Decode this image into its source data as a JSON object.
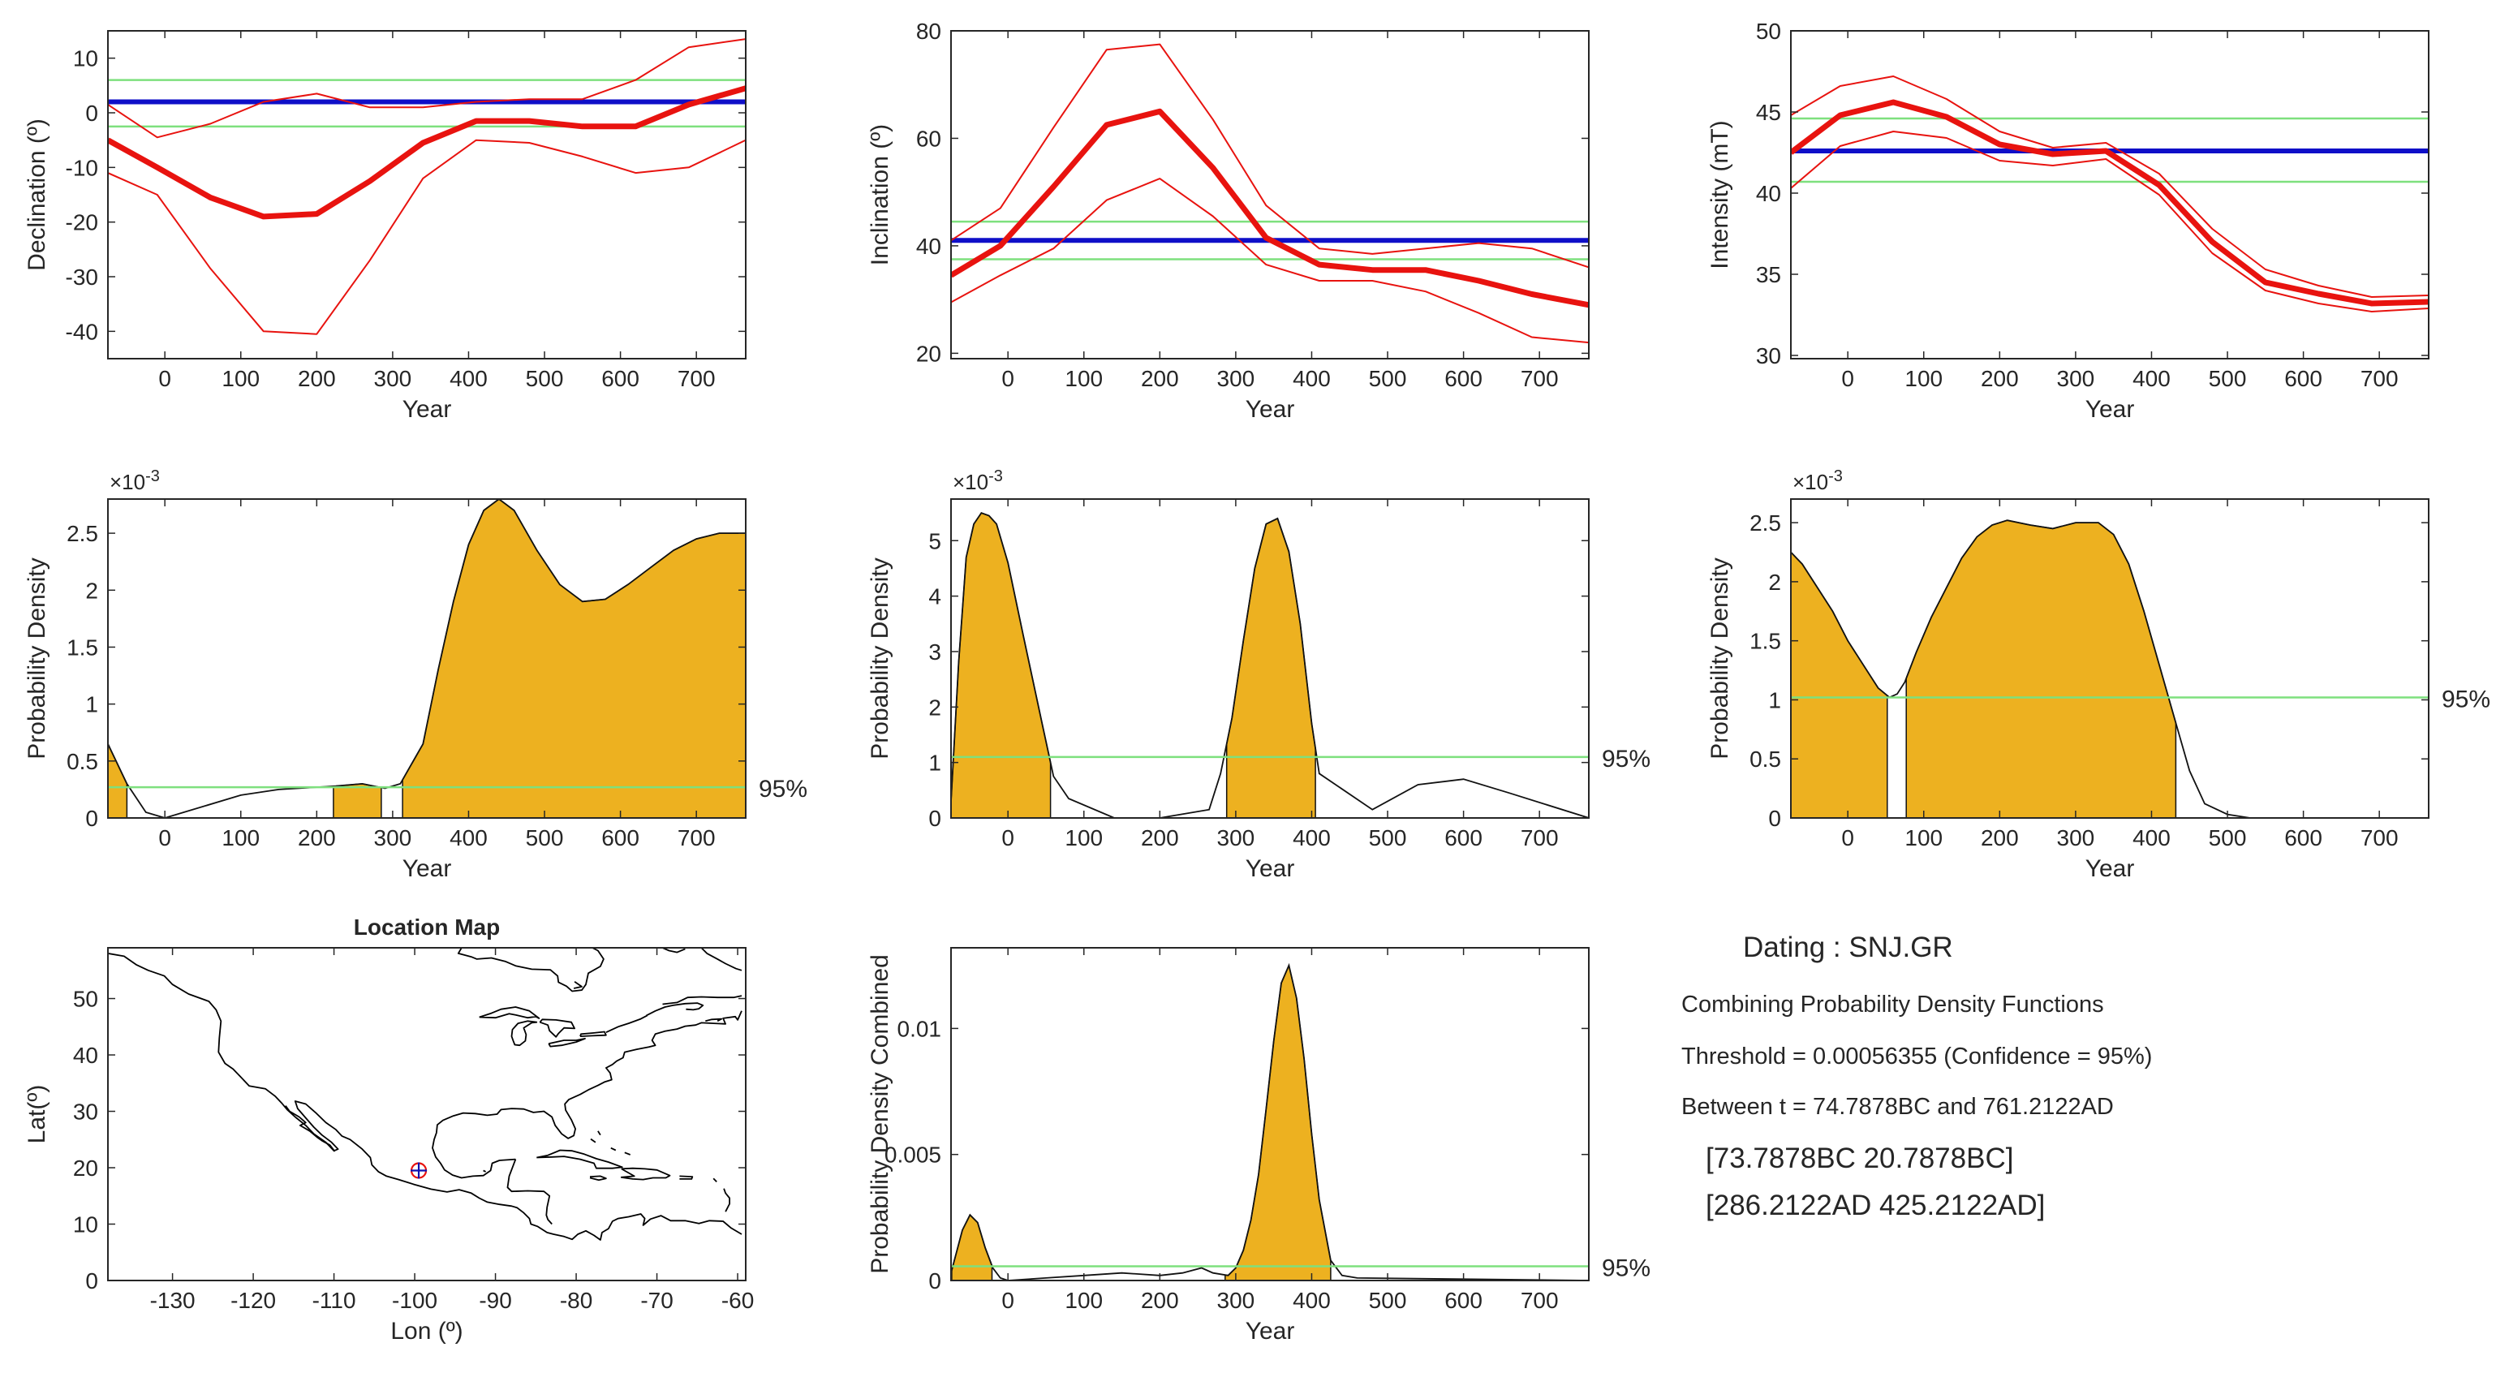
{
  "figure": {
    "dating_title": "Dating : SNJ.GR",
    "combining_text": "Combining Probability Density Functions",
    "threshold_text": "Threshold = 0.00056355 (Confidence = 95%)",
    "between_text": "Between t = 74.7878BC and 761.2122AD",
    "intervals": [
      "[73.7878BC   20.7878BC]",
      "[286.2122AD   425.2122AD]"
    ]
  },
  "colors": {
    "red": "#e8130f",
    "blue": "#0f0fc8",
    "green": "#7ee07e",
    "fill": "#edb120",
    "line": "#111111"
  },
  "chart_data": [
    {
      "id": "declination",
      "type": "line",
      "title": "",
      "xlabel": "Year",
      "ylabel": "Declination (º)",
      "xlim": [
        -75,
        765
      ],
      "ylim": [
        -45,
        15
      ],
      "xticks": [
        0,
        100,
        200,
        300,
        400,
        500,
        600,
        700
      ],
      "yticks": [
        -40,
        -30,
        -20,
        -10,
        0,
        10
      ],
      "x": [
        -75,
        -10,
        60,
        130,
        200,
        270,
        340,
        410,
        480,
        550,
        620,
        690,
        765
      ],
      "series": [
        {
          "name": "mean",
          "role": "mean",
          "values": [
            -5,
            -10,
            -15.5,
            -19,
            -18.5,
            -12.5,
            -5.5,
            -1.5,
            -1.5,
            -2.5,
            -2.5,
            1.5,
            4.5
          ]
        },
        {
          "name": "upper",
          "role": "bound",
          "values": [
            1.5,
            -4.5,
            -2,
            2,
            3.5,
            1,
            1,
            2,
            2.5,
            2.5,
            6,
            12,
            13.5
          ]
        },
        {
          "name": "lower",
          "role": "bound",
          "values": [
            -11,
            -15,
            -28.5,
            -40,
            -40.5,
            -27,
            -12,
            -5,
            -5.5,
            -8,
            -11,
            -10,
            -5
          ]
        }
      ],
      "reference": {
        "value": 2
      },
      "confidence_lines": [
        6,
        -2.5
      ]
    },
    {
      "id": "inclination",
      "type": "line",
      "title": "",
      "xlabel": "Year",
      "ylabel": "Inclination (º)",
      "xlim": [
        -75,
        765
      ],
      "ylim": [
        19,
        80
      ],
      "xticks": [
        0,
        100,
        200,
        300,
        400,
        500,
        600,
        700
      ],
      "yticks": [
        20,
        40,
        60,
        80
      ],
      "x": [
        -75,
        -10,
        60,
        130,
        200,
        270,
        340,
        410,
        480,
        550,
        620,
        690,
        765
      ],
      "series": [
        {
          "name": "mean",
          "role": "mean",
          "values": [
            34.5,
            40,
            51,
            62.5,
            65,
            54.5,
            41.5,
            36.5,
            35.5,
            35.5,
            33.5,
            31,
            29
          ]
        },
        {
          "name": "upper",
          "role": "bound",
          "values": [
            41,
            47,
            62,
            76.5,
            77.5,
            63.5,
            47.5,
            39.5,
            38.5,
            39.5,
            40.5,
            39.5,
            36
          ]
        },
        {
          "name": "lower",
          "role": "bound",
          "values": [
            29.5,
            34.5,
            39.5,
            48.5,
            52.5,
            45.5,
            36.5,
            33.5,
            33.5,
            31.5,
            27.5,
            23,
            22
          ]
        }
      ],
      "reference": {
        "value": 41
      },
      "confidence_lines": [
        44.5,
        37.5
      ]
    },
    {
      "id": "intensity",
      "type": "line",
      "title": "",
      "xlabel": "Year",
      "ylabel": "Intensity (mT)",
      "xlim": [
        -75,
        765
      ],
      "ylim": [
        29.8,
        50
      ],
      "xticks": [
        0,
        100,
        200,
        300,
        400,
        500,
        600,
        700
      ],
      "yticks": [
        30,
        35,
        40,
        45,
        50
      ],
      "x": [
        -75,
        -10,
        60,
        130,
        200,
        270,
        340,
        410,
        480,
        550,
        620,
        690,
        765
      ],
      "series": [
        {
          "name": "mean",
          "role": "mean",
          "values": [
            42.5,
            44.8,
            45.6,
            44.7,
            43,
            42.4,
            42.6,
            40.5,
            37,
            34.5,
            33.8,
            33.2,
            33.3
          ]
        },
        {
          "name": "upper",
          "role": "bound",
          "values": [
            44.8,
            46.6,
            47.2,
            45.8,
            43.8,
            42.8,
            43.1,
            41.2,
            37.8,
            35.3,
            34.3,
            33.6,
            33.7
          ]
        },
        {
          "name": "lower",
          "role": "bound",
          "values": [
            40.3,
            42.9,
            43.8,
            43.4,
            42,
            41.7,
            42.1,
            39.9,
            36.3,
            34,
            33.2,
            32.7,
            32.9
          ]
        }
      ],
      "reference": {
        "value": 42.6
      },
      "confidence_lines": [
        44.6,
        40.7
      ]
    },
    {
      "id": "declination-pdf",
      "type": "area",
      "title": "",
      "xlabel": "Year",
      "ylabel": "Probability Density",
      "exponent": "×10",
      "exponent_power": "-3",
      "xlim": [
        -75,
        765
      ],
      "ylim": [
        0,
        2.8
      ],
      "xticks": [
        0,
        100,
        200,
        300,
        400,
        500,
        600,
        700
      ],
      "yticks": [
        0,
        0.5,
        1,
        1.5,
        2,
        2.5
      ],
      "x": [
        -75,
        -50,
        -25,
        0,
        100,
        150,
        200,
        225,
        260,
        290,
        310,
        340,
        360,
        380,
        400,
        420,
        440,
        460,
        490,
        520,
        550,
        580,
        610,
        640,
        670,
        700,
        730,
        765
      ],
      "values": [
        0.65,
        0.3,
        0.05,
        0,
        0.2,
        0.25,
        0.27,
        0.28,
        0.3,
        0.26,
        0.3,
        0.65,
        1.3,
        1.9,
        2.4,
        2.7,
        2.8,
        2.7,
        2.35,
        2.05,
        1.9,
        1.92,
        2.05,
        2.2,
        2.35,
        2.45,
        2.5,
        2.5
      ],
      "threshold": 0.27,
      "threshold_label": "95%",
      "shaded_ranges": [
        [
          -75,
          -50
        ],
        [
          222,
          285
        ],
        [
          313,
          765
        ]
      ]
    },
    {
      "id": "inclination-pdf",
      "type": "area",
      "title": "",
      "xlabel": "Year",
      "ylabel": "Probability Density",
      "exponent": "×10",
      "exponent_power": "-3",
      "xlim": [
        -75,
        765
      ],
      "ylim": [
        0,
        5.75
      ],
      "xticks": [
        0,
        100,
        200,
        300,
        400,
        500,
        600,
        700
      ],
      "yticks": [
        0,
        1,
        2,
        3,
        4,
        5
      ],
      "x": [
        -75,
        -65,
        -55,
        -45,
        -35,
        -25,
        -15,
        0,
        20,
        45,
        60,
        80,
        140,
        200,
        265,
        280,
        295,
        310,
        325,
        340,
        355,
        370,
        385,
        400,
        410,
        480,
        540,
        600,
        660,
        765
      ],
      "values": [
        0.3,
        2.8,
        4.7,
        5.3,
        5.5,
        5.45,
        5.3,
        4.6,
        3.3,
        1.7,
        0.75,
        0.35,
        0,
        0,
        0.15,
        0.8,
        1.8,
        3.2,
        4.5,
        5.3,
        5.4,
        4.8,
        3.5,
        1.7,
        0.8,
        0.15,
        0.6,
        0.7,
        0.45,
        0
      ],
      "threshold": 1.1,
      "threshold_label": "95%",
      "shaded_ranges": [
        [
          -75,
          56
        ],
        [
          288,
          405
        ]
      ]
    },
    {
      "id": "intensity-pdf",
      "type": "area",
      "title": "",
      "xlabel": "Year",
      "ylabel": "Probability Density",
      "exponent": "×10",
      "exponent_power": "-3",
      "xlim": [
        -75,
        765
      ],
      "ylim": [
        0,
        2.7
      ],
      "xticks": [
        0,
        100,
        200,
        300,
        400,
        500,
        600,
        700
      ],
      "yticks": [
        0,
        0.5,
        1,
        1.5,
        2,
        2.5
      ],
      "x": [
        -75,
        -60,
        -40,
        -20,
        0,
        20,
        40,
        55,
        65,
        75,
        90,
        110,
        130,
        150,
        170,
        190,
        210,
        240,
        270,
        300,
        330,
        350,
        370,
        390,
        410,
        430,
        450,
        470,
        500,
        530,
        560,
        765
      ],
      "values": [
        2.25,
        2.15,
        1.95,
        1.75,
        1.5,
        1.3,
        1.1,
        1.02,
        1.05,
        1.15,
        1.4,
        1.7,
        1.95,
        2.2,
        2.38,
        2.48,
        2.52,
        2.48,
        2.45,
        2.5,
        2.5,
        2.4,
        2.15,
        1.75,
        1.3,
        0.85,
        0.4,
        0.12,
        0.03,
        0,
        0,
        0
      ],
      "threshold": 1.02,
      "threshold_label": "95%",
      "shaded_ranges": [
        [
          -75,
          52
        ],
        [
          77,
          432
        ]
      ]
    },
    {
      "id": "location-map",
      "type": "map",
      "title": "Location Map",
      "xlabel": "Lon (º)",
      "ylabel": "Lat(º)",
      "xlim": [
        -138,
        -59
      ],
      "ylim": [
        0,
        59
      ],
      "xticks": [
        -130,
        -120,
        -110,
        -100,
        -90,
        -80,
        -70,
        -60
      ],
      "yticks": [
        0,
        10,
        20,
        30,
        40,
        50
      ],
      "site": {
        "lon": -99.5,
        "lat": 19.5
      }
    },
    {
      "id": "combined-pdf",
      "type": "area",
      "title": "",
      "xlabel": "Year",
      "ylabel": "Probability Density Combined",
      "xlim": [
        -75,
        765
      ],
      "ylim": [
        0,
        0.0132
      ],
      "xticks": [
        0,
        100,
        200,
        300,
        400,
        500,
        600,
        700
      ],
      "yticks": [
        0,
        0.005,
        0.01
      ],
      "ytick_labels": [
        "0",
        "0.005",
        "0.01"
      ],
      "x": [
        -75,
        -60,
        -50,
        -40,
        -30,
        -20,
        -10,
        0,
        50,
        100,
        150,
        200,
        230,
        255,
        270,
        290,
        300,
        310,
        320,
        330,
        340,
        350,
        360,
        370,
        380,
        390,
        400,
        410,
        425,
        440,
        460,
        765
      ],
      "values": [
        0.0003,
        0.002,
        0.0026,
        0.0023,
        0.0013,
        0.0005,
        0.0001,
        0,
        0.0001,
        0.0002,
        0.0003,
        0.0002,
        0.0003,
        0.0005,
        0.0003,
        0.0002,
        0.0005,
        0.0012,
        0.0024,
        0.0042,
        0.0068,
        0.0095,
        0.0118,
        0.0125,
        0.0112,
        0.0088,
        0.0058,
        0.0032,
        0.0008,
        0.0002,
        0.0001,
        0
      ],
      "threshold": 0.00056355,
      "threshold_label": "95%",
      "shaded_ranges": [
        [
          -74,
          -21
        ],
        [
          286,
          425
        ]
      ]
    }
  ]
}
